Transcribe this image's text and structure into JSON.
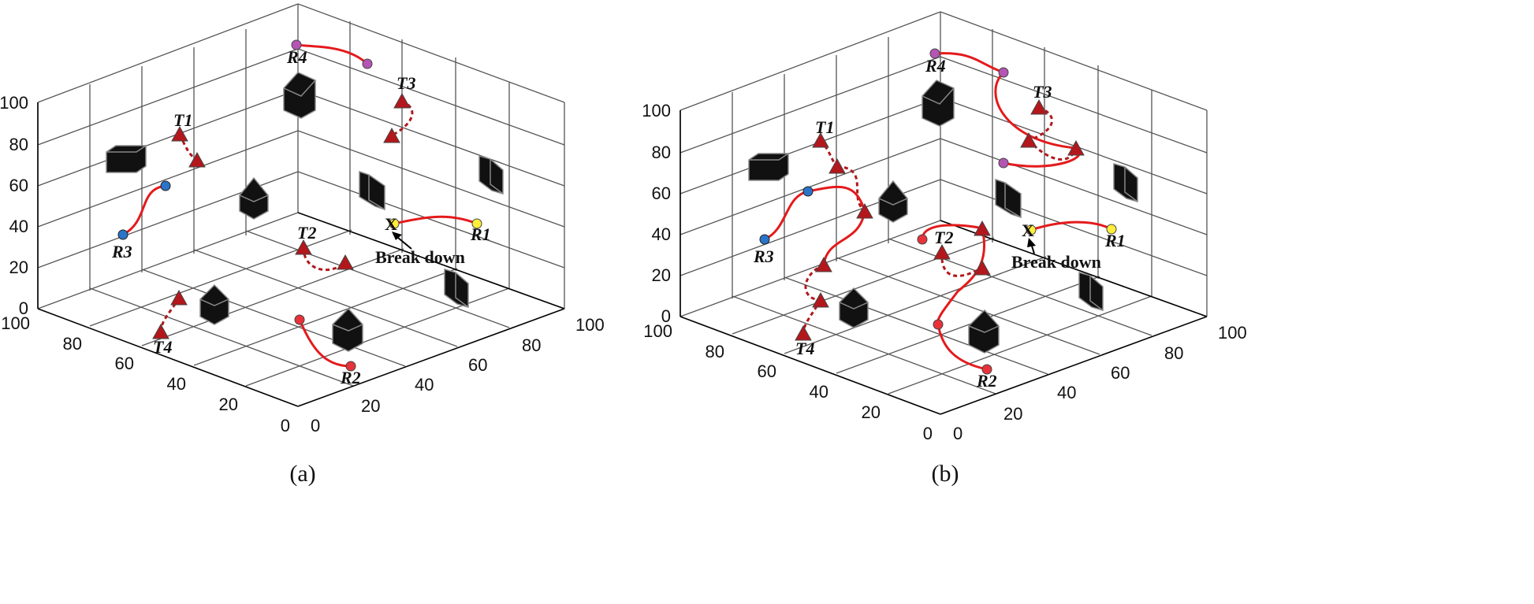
{
  "figure": {
    "panels": [
      {
        "caption": "(a)",
        "tick_labels": {
          "z": [
            "0",
            "20",
            "40",
            "60",
            "80",
            "100"
          ],
          "x": [
            "100",
            "80",
            "60",
            "40",
            "20",
            "0"
          ],
          "y": [
            "0",
            "20",
            "40",
            "60",
            "80",
            "100"
          ]
        },
        "annotation": "Break down",
        "break_marker": "X",
        "robots": [
          {
            "label": "R1",
            "color": "#ffef3a"
          },
          {
            "label": "R2",
            "color": "#e8323a"
          },
          {
            "label": "R3",
            "color": "#2a74c9"
          },
          {
            "label": "R4",
            "color": "#b455b4"
          }
        ],
        "targets": [
          "T1",
          "T2",
          "T3",
          "T4"
        ]
      },
      {
        "caption": "(b)",
        "tick_labels": {
          "z": [
            "0",
            "20",
            "40",
            "60",
            "80",
            "100"
          ],
          "x": [
            "100",
            "80",
            "60",
            "40",
            "20",
            "0"
          ],
          "y": [
            "0",
            "20",
            "40",
            "60",
            "80",
            "100"
          ]
        },
        "annotation": "Break down",
        "break_marker": "X",
        "robots": [
          {
            "label": "R1",
            "color": "#ffef3a"
          },
          {
            "label": "R2",
            "color": "#e8323a"
          },
          {
            "label": "R3",
            "color": "#2a74c9"
          },
          {
            "label": "R4",
            "color": "#b455b4"
          }
        ],
        "targets": [
          "T1",
          "T2",
          "T3",
          "T4"
        ]
      }
    ],
    "colors": {
      "path": "#e41a1c",
      "target_fill": "#b3171c",
      "obstacle": "#111111"
    }
  }
}
